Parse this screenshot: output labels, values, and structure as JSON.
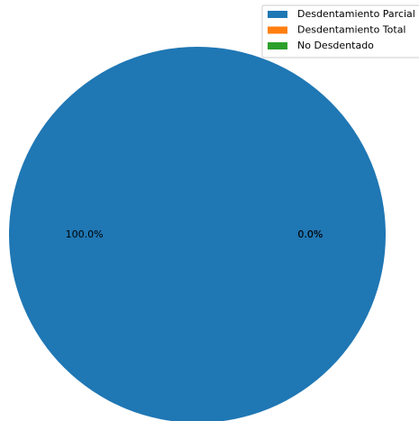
{
  "chart_data": {
    "type": "pie",
    "categories": [
      "Desdentamiento Parcial",
      "Desdentamiento Total",
      "No Desdentado"
    ],
    "values": [
      100.0,
      0.0,
      0.0
    ],
    "colors": [
      "#1f77b4",
      "#ff7f0e",
      "#2ca02c"
    ],
    "labels": [
      "100.0%",
      "0.0%",
      "0.0%"
    ],
    "title": "",
    "legend_position": "top-right"
  }
}
